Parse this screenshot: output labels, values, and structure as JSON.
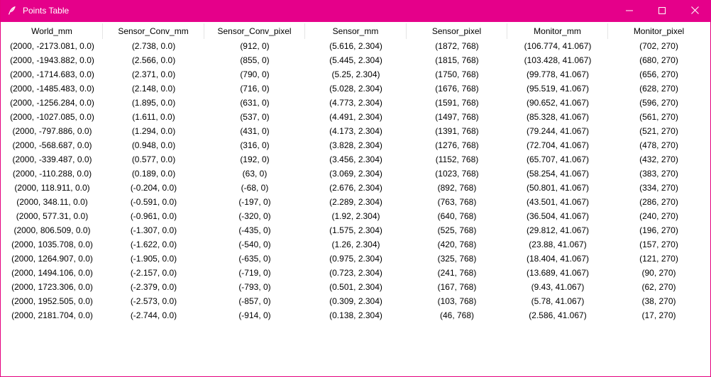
{
  "window": {
    "title": "Points Table",
    "accent_color": "#e5008a",
    "icons": {
      "app": "feather-icon",
      "minimize": "minimize-icon",
      "maximize": "maximize-icon",
      "close": "close-icon"
    }
  },
  "table": {
    "columns": [
      "World_mm",
      "Sensor_Conv_mm",
      "Sensor_Conv_pixel",
      "Sensor_mm",
      "Sensor_pixel",
      "Monitor_mm",
      "Monitor_pixel"
    ],
    "rows": [
      [
        "(2000, -2173.081, 0.0)",
        "(2.738, 0.0)",
        "(912, 0)",
        "(5.616, 2.304)",
        "(1872, 768)",
        "(106.774, 41.067)",
        "(702, 270)"
      ],
      [
        "(2000, -1943.882, 0.0)",
        "(2.566, 0.0)",
        "(855, 0)",
        "(5.445, 2.304)",
        "(1815, 768)",
        "(103.428, 41.067)",
        "(680, 270)"
      ],
      [
        "(2000, -1714.683, 0.0)",
        "(2.371, 0.0)",
        "(790, 0)",
        "(5.25, 2.304)",
        "(1750, 768)",
        "(99.778, 41.067)",
        "(656, 270)"
      ],
      [
        "(2000, -1485.483, 0.0)",
        "(2.148, 0.0)",
        "(716, 0)",
        "(5.028, 2.304)",
        "(1676, 768)",
        "(95.519, 41.067)",
        "(628, 270)"
      ],
      [
        "(2000, -1256.284, 0.0)",
        "(1.895, 0.0)",
        "(631, 0)",
        "(4.773, 2.304)",
        "(1591, 768)",
        "(90.652, 41.067)",
        "(596, 270)"
      ],
      [
        "(2000, -1027.085, 0.0)",
        "(1.611, 0.0)",
        "(537, 0)",
        "(4.491, 2.304)",
        "(1497, 768)",
        "(85.328, 41.067)",
        "(561, 270)"
      ],
      [
        "(2000, -797.886, 0.0)",
        "(1.294, 0.0)",
        "(431, 0)",
        "(4.173, 2.304)",
        "(1391, 768)",
        "(79.244, 41.067)",
        "(521, 270)"
      ],
      [
        "(2000, -568.687, 0.0)",
        "(0.948, 0.0)",
        "(316, 0)",
        "(3.828, 2.304)",
        "(1276, 768)",
        "(72.704, 41.067)",
        "(478, 270)"
      ],
      [
        "(2000, -339.487, 0.0)",
        "(0.577, 0.0)",
        "(192, 0)",
        "(3.456, 2.304)",
        "(1152, 768)",
        "(65.707, 41.067)",
        "(432, 270)"
      ],
      [
        "(2000, -110.288, 0.0)",
        "(0.189, 0.0)",
        "(63, 0)",
        "(3.069, 2.304)",
        "(1023, 768)",
        "(58.254, 41.067)",
        "(383, 270)"
      ],
      [
        "(2000, 118.911, 0.0)",
        "(-0.204, 0.0)",
        "(-68, 0)",
        "(2.676, 2.304)",
        "(892, 768)",
        "(50.801, 41.067)",
        "(334, 270)"
      ],
      [
        "(2000, 348.11, 0.0)",
        "(-0.591, 0.0)",
        "(-197, 0)",
        "(2.289, 2.304)",
        "(763, 768)",
        "(43.501, 41.067)",
        "(286, 270)"
      ],
      [
        "(2000, 577.31, 0.0)",
        "(-0.961, 0.0)",
        "(-320, 0)",
        "(1.92, 2.304)",
        "(640, 768)",
        "(36.504, 41.067)",
        "(240, 270)"
      ],
      [
        "(2000, 806.509, 0.0)",
        "(-1.307, 0.0)",
        "(-435, 0)",
        "(1.575, 2.304)",
        "(525, 768)",
        "(29.812, 41.067)",
        "(196, 270)"
      ],
      [
        "(2000, 1035.708, 0.0)",
        "(-1.622, 0.0)",
        "(-540, 0)",
        "(1.26, 2.304)",
        "(420, 768)",
        "(23.88, 41.067)",
        "(157, 270)"
      ],
      [
        "(2000, 1264.907, 0.0)",
        "(-1.905, 0.0)",
        "(-635, 0)",
        "(0.975, 2.304)",
        "(325, 768)",
        "(18.404, 41.067)",
        "(121, 270)"
      ],
      [
        "(2000, 1494.106, 0.0)",
        "(-2.157, 0.0)",
        "(-719, 0)",
        "(0.723, 2.304)",
        "(241, 768)",
        "(13.689, 41.067)",
        "(90, 270)"
      ],
      [
        "(2000, 1723.306, 0.0)",
        "(-2.379, 0.0)",
        "(-793, 0)",
        "(0.501, 2.304)",
        "(167, 768)",
        "(9.43, 41.067)",
        "(62, 270)"
      ],
      [
        "(2000, 1952.505, 0.0)",
        "(-2.573, 0.0)",
        "(-857, 0)",
        "(0.309, 2.304)",
        "(103, 768)",
        "(5.78, 41.067)",
        "(38, 270)"
      ],
      [
        "(2000, 2181.704, 0.0)",
        "(-2.744, 0.0)",
        "(-914, 0)",
        "(0.138, 2.304)",
        "(46, 768)",
        "(2.586, 41.067)",
        "(17, 270)"
      ]
    ]
  }
}
